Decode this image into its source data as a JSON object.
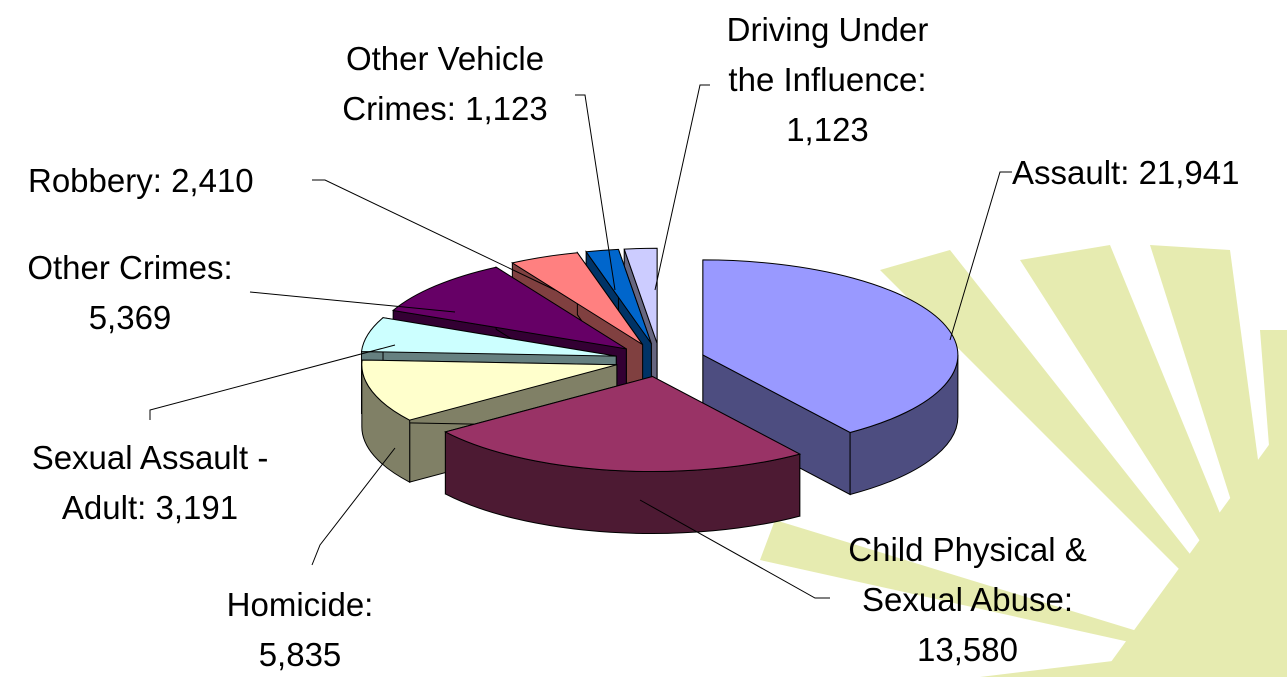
{
  "chart_data": {
    "type": "pie",
    "categories": [
      "Assault:",
      "Child Physical & Sexual Abuse:",
      "Homicide:",
      "Sexual Assault - Adult:",
      "Other Crimes:",
      "Robbery:",
      "Other Vehicle Crimes:",
      "Driving Under the Influence:"
    ],
    "values": [
      21941,
      13580,
      5835,
      3191,
      5369,
      2410,
      1123,
      1123
    ],
    "value_labels": [
      "21,941",
      "13,580",
      "5,835",
      "3,191",
      "5,369",
      "2,410",
      "1,123",
      "1,123"
    ],
    "colors": [
      "#9999ff",
      "#993366",
      "#ffffcc",
      "#ccffff",
      "#660066",
      "#ff8080",
      "#0066cc",
      "#ccccff"
    ]
  }
}
